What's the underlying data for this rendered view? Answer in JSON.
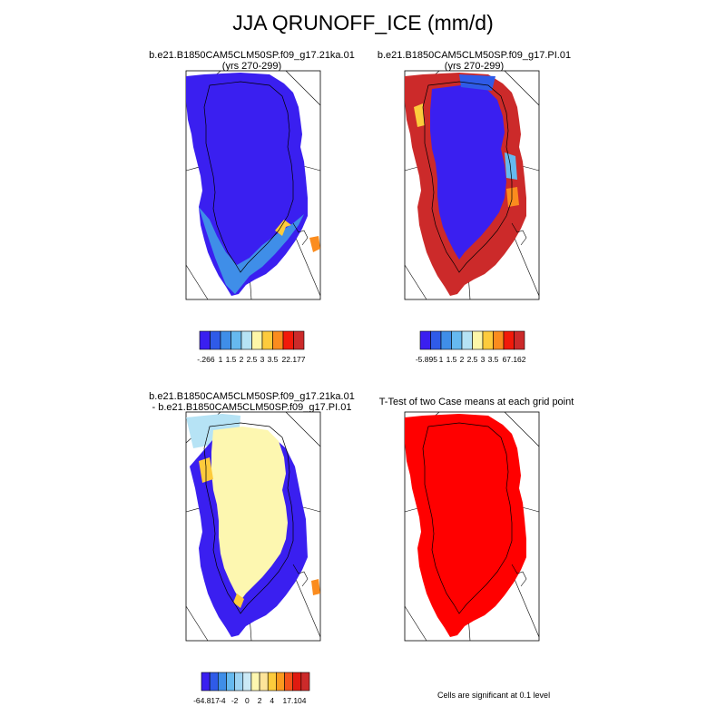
{
  "title": "JJA QRUNOFF_ICE (mm/d)",
  "panels": [
    {
      "id": "tl",
      "title_lines": [
        "b.e21.B1850CAM5CLM50SP.f09_g17.21ka.01",
        "(yrs 270-299)"
      ],
      "colorbar": {
        "colors": [
          "#3a1ff0",
          "#2f5be8",
          "#3f8ee8",
          "#66b9ef",
          "#b6e3f5",
          "#fdf6a8",
          "#fdcb3c",
          "#fb8c1e",
          "#f21a0a",
          "#cc2a2a"
        ],
        "labels": [
          "-.266",
          "1",
          "1.5",
          "2",
          "2.5",
          "3",
          "3.5",
          "22.177"
        ]
      }
    },
    {
      "id": "tr",
      "title_lines": [
        "b.e21.B1850CAM5CLM50SP.f09_g17.PI.01",
        "(yrs 270-299)"
      ],
      "colorbar": {
        "colors": [
          "#3a1ff0",
          "#2f5be8",
          "#3f8ee8",
          "#66b9ef",
          "#b6e3f5",
          "#fdf6a8",
          "#fdcb3c",
          "#fb8c1e",
          "#f21a0a",
          "#cc2a2a"
        ],
        "labels": [
          "-5.895",
          "1",
          "1.5",
          "2",
          "2.5",
          "3",
          "3.5",
          "67.162"
        ]
      }
    },
    {
      "id": "bl",
      "title_lines": [
        "b.e21.B1850CAM5CLM50SP.f09_g17.21ka.01",
        "- b.e21.B1850CAM5CLM50SP.f09_g17.PI.01"
      ],
      "colorbar": {
        "colors": [
          "#3a1ff0",
          "#2f5be8",
          "#3f8ee8",
          "#66b9ef",
          "#9dd3f2",
          "#cbe9f6",
          "#fdf7b0",
          "#fde49a",
          "#fdcb3c",
          "#fb9a1e",
          "#f4531a",
          "#e01a10",
          "#cc2a2a"
        ],
        "labels": [
          "-64.817",
          "-4",
          "-2",
          "0",
          "2",
          "4",
          "17.104"
        ]
      }
    },
    {
      "id": "br",
      "title_lines": [
        "T-Test of two Case means at each grid point"
      ],
      "note": "Cells are significant at 0.1 level"
    }
  ]
}
